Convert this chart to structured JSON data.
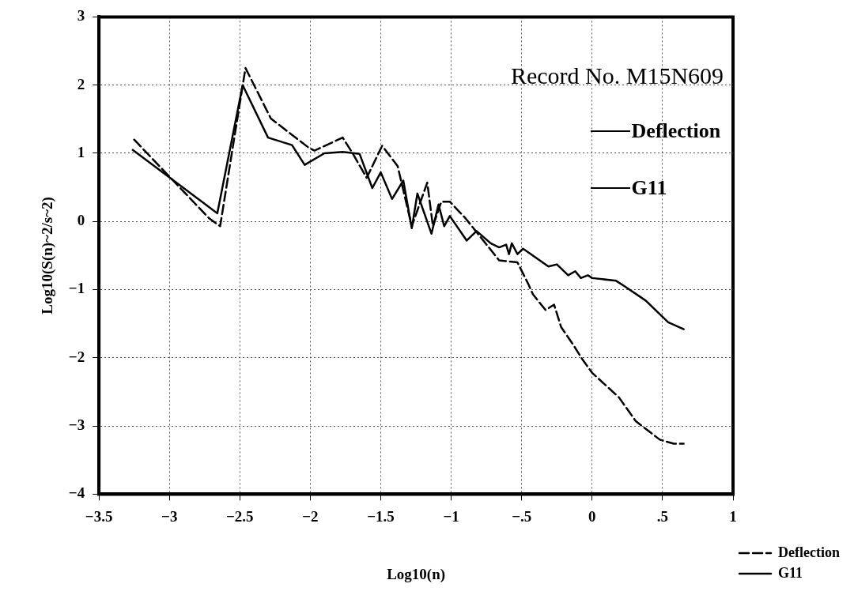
{
  "chart_data": {
    "type": "line",
    "xlabel": "Log10(n)",
    "ylabel": "Log10(S(n)~2/s~2)",
    "annotations": [
      "Record No. M15N609",
      "Deflection",
      "G11"
    ],
    "xlim": [
      -3.5,
      1
    ],
    "ylim": [
      -4,
      3
    ],
    "xticks": [
      {
        "value": -3.5,
        "label": "−3.5"
      },
      {
        "value": -3,
        "label": "−3"
      },
      {
        "value": -2.5,
        "label": "−2.5"
      },
      {
        "value": -2,
        "label": "−2"
      },
      {
        "value": -1.5,
        "label": "−1.5"
      },
      {
        "value": -1,
        "label": "−1"
      },
      {
        "value": -0.5,
        "label": "−.5"
      },
      0,
      {
        "value": 0.5,
        "label": ".5"
      },
      1
    ],
    "yticks": [
      {
        "value": -4,
        "label": "−4"
      },
      {
        "value": -3,
        "label": "−3"
      },
      {
        "value": -2,
        "label": "−2"
      },
      {
        "value": -1,
        "label": "−1"
      },
      0,
      1,
      2,
      3
    ],
    "grid": true,
    "legend": "bottom right",
    "marker": "none",
    "series": [
      {
        "name": "Deflection",
        "color": "#000000",
        "line_style": "dashed",
        "x": [
          -3.25,
          -2.72,
          -2.64,
          -2.46,
          -2.28,
          -2.18,
          -2.01,
          -1.97,
          -1.77,
          -1.7,
          -1.6,
          -1.49,
          -1.42,
          -1.38,
          -1.28,
          -1.17,
          -1.13,
          -1.07,
          -1.01,
          -0.9,
          -0.66,
          -0.53,
          -0.45,
          -0.42,
          -0.33,
          -0.27,
          -0.22,
          -0.14,
          -0.07,
          0,
          0.19,
          0.31,
          0.48,
          0.58,
          0.65
        ],
        "values": [
          1.2,
          0.05,
          -0.07,
          2.25,
          1.51,
          1.35,
          1.08,
          1.04,
          1.23,
          1,
          0.64,
          1.11,
          0.92,
          0.81,
          -0.07,
          0.57,
          -0.07,
          0.29,
          0.29,
          0.05,
          -0.57,
          -0.6,
          -0.93,
          -1.07,
          -1.3,
          -1.22,
          -1.55,
          -1.79,
          -2.02,
          -2.22,
          -2.58,
          -2.93,
          -3.2,
          -3.26,
          -3.26
        ]
      },
      {
        "name": "G11",
        "color": "#000000",
        "line_style": "solid",
        "x": [
          -3.26,
          -2.66,
          -2.48,
          -2.3,
          -2.13,
          -2.04,
          -1.9,
          -1.77,
          -1.65,
          -1.56,
          -1.5,
          -1.42,
          -1.34,
          -1.28,
          -1.24,
          -1.14,
          -1.09,
          -1.05,
          -1.01,
          -0.89,
          -0.82,
          -0.72,
          -0.66,
          -0.61,
          -0.59,
          -0.57,
          -0.53,
          -0.49,
          -0.31,
          -0.25,
          -0.17,
          -0.12,
          -0.08,
          -0.03,
          0,
          0.17,
          0.23,
          0.38,
          0.54,
          0.65
        ],
        "values": [
          1.05,
          0.12,
          2,
          1.23,
          1.12,
          0.83,
          1,
          1.02,
          0.99,
          0.49,
          0.72,
          0.33,
          0.6,
          -0.1,
          0.41,
          -0.18,
          0.25,
          -0.07,
          0.08,
          -0.28,
          -0.14,
          -0.32,
          -0.38,
          -0.34,
          -0.48,
          -0.32,
          -0.48,
          -0.4,
          -0.66,
          -0.63,
          -0.79,
          -0.73,
          -0.83,
          -0.79,
          -0.83,
          -0.87,
          -0.95,
          -1.16,
          -1.48,
          -1.58
        ]
      }
    ]
  }
}
